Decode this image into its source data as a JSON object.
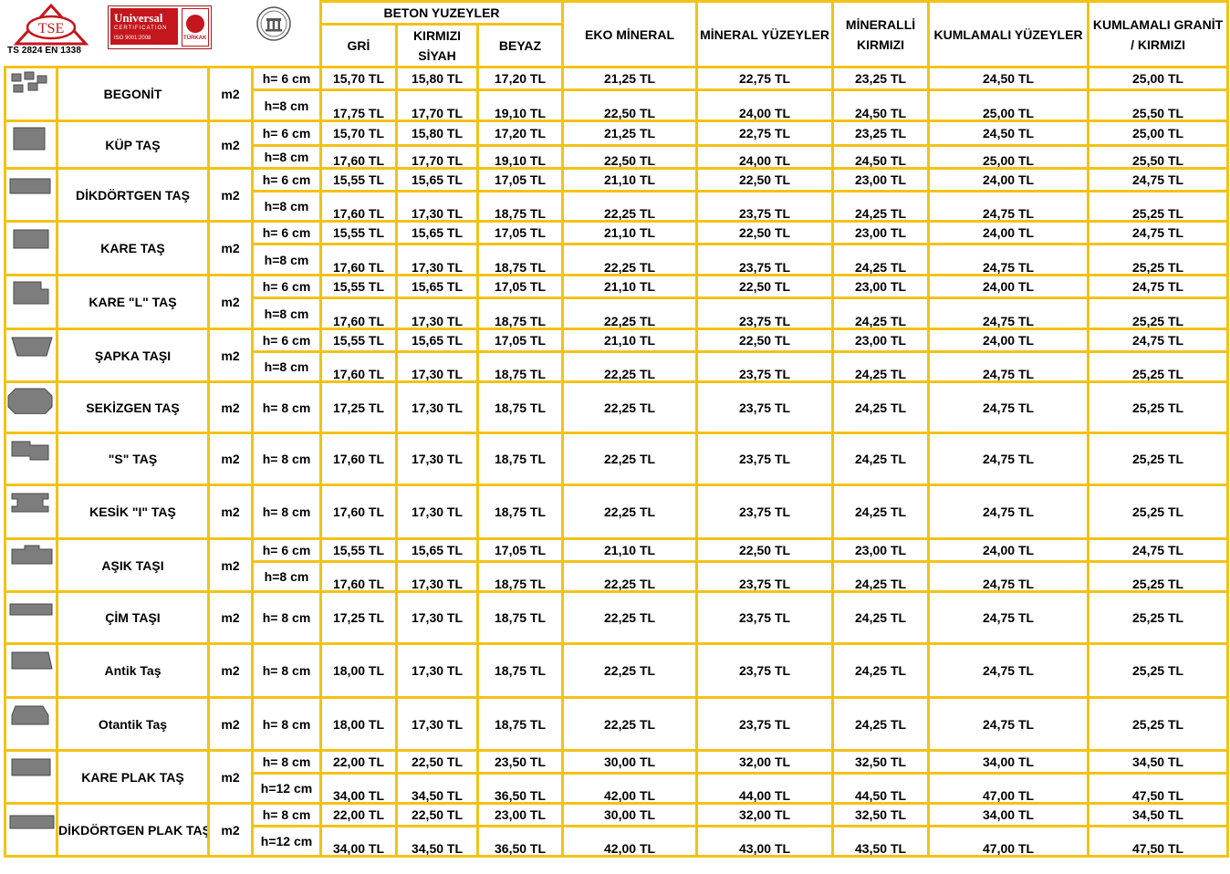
{
  "logos": {
    "tse_text": "TSE",
    "tse_standard": "TS 2824 EN 1338",
    "universal_name": "Universal",
    "universal_cert": "CERTIFICATION",
    "universal_iso": "ISO 9001:2008",
    "turkak": "TÜRKAK"
  },
  "header": {
    "group_label": "BETON YUZEYLER",
    "columns": [
      "GRİ",
      "KIRMIZI SİYAH",
      "BEYAZ",
      "EKO MİNERAL",
      "MİNERAL YÜZEYLER",
      "MİNERALLİ KIRMIZI",
      "KUMLAMALI YÜZEYLER",
      "KUMLAMALI GRANİT / KIRMIZI"
    ]
  },
  "products": [
    {
      "name": "BEGONİT",
      "unit": "m2",
      "icon": "begonit-stone-icon",
      "rows": [
        {
          "h": "h= 6 cm",
          "prices": [
            "15,70 TL",
            "15,80 TL",
            "17,20 TL",
            "21,25 TL",
            "22,75 TL",
            "23,25 TL",
            "24,50 TL",
            "25,00 TL"
          ]
        },
        {
          "h": "h=8 cm",
          "prices": [
            "17,75 TL",
            "17,70 TL",
            "19,10 TL",
            "22,50 TL",
            "24,00 TL",
            "24,50 TL",
            "25,00 TL",
            "25,50 TL"
          ]
        }
      ]
    },
    {
      "name": "KÜP TAŞ",
      "unit": "m2",
      "icon": "cube-stone-icon",
      "rows": [
        {
          "h": "h= 6 cm",
          "prices": [
            "15,70 TL",
            "15,80 TL",
            "17,20 TL",
            "21,25 TL",
            "22,75 TL",
            "23,25 TL",
            "24,50 TL",
            "25,00 TL"
          ]
        },
        {
          "h": "h=8 cm",
          "prices": [
            "17,60 TL",
            "17,70 TL",
            "19,10 TL",
            "22,50 TL",
            "24,00 TL",
            "24,50 TL",
            "25,00 TL",
            "25,50 TL"
          ]
        }
      ]
    },
    {
      "name": "DİKDÖRTGEN TAŞ",
      "unit": "m2",
      "icon": "rectangle-stone-icon",
      "rows": [
        {
          "h": "h= 6 cm",
          "prices": [
            "15,55 TL",
            "15,65 TL",
            "17,05 TL",
            "21,10 TL",
            "22,50 TL",
            "23,00 TL",
            "24,00 TL",
            "24,75 TL"
          ]
        },
        {
          "h": "h=8 cm",
          "prices": [
            "17,60 TL",
            "17,30 TL",
            "18,75 TL",
            "22,25 TL",
            "23,75 TL",
            "24,25 TL",
            "24,75 TL",
            "25,25 TL"
          ]
        }
      ]
    },
    {
      "name": "KARE TAŞ",
      "unit": "m2",
      "icon": "square-stone-icon",
      "rows": [
        {
          "h": "h= 6 cm",
          "prices": [
            "15,55 TL",
            "15,65 TL",
            "17,05 TL",
            "21,10 TL",
            "22,50 TL",
            "23,00 TL",
            "24,00 TL",
            "24,75 TL"
          ]
        },
        {
          "h": "h=8 cm",
          "prices": [
            "17,60 TL",
            "17,30 TL",
            "18,75 TL",
            "22,25 TL",
            "23,75 TL",
            "24,25 TL",
            "24,75 TL",
            "25,25 TL"
          ]
        }
      ]
    },
    {
      "name": "KARE \"L\" TAŞ",
      "unit": "m2",
      "icon": "square-l-stone-icon",
      "rows": [
        {
          "h": "h= 6 cm",
          "prices": [
            "15,55 TL",
            "15,65 TL",
            "17,05 TL",
            "21,10 TL",
            "22,50 TL",
            "23,00 TL",
            "24,00 TL",
            "24,75 TL"
          ]
        },
        {
          "h": "h=8 cm",
          "prices": [
            "17,60 TL",
            "17,30 TL",
            "18,75 TL",
            "22,25 TL",
            "23,75 TL",
            "24,25 TL",
            "24,75 TL",
            "25,25 TL"
          ]
        }
      ]
    },
    {
      "name": "ŞAPKA TAŞI",
      "unit": "m2",
      "icon": "hat-stone-icon",
      "rows": [
        {
          "h": "h= 6 cm",
          "prices": [
            "15,55 TL",
            "15,65 TL",
            "17,05 TL",
            "21,10 TL",
            "22,50 TL",
            "23,00 TL",
            "24,00 TL",
            "24,75 TL"
          ]
        },
        {
          "h": "h=8 cm",
          "prices": [
            "17,60 TL",
            "17,30 TL",
            "18,75 TL",
            "22,25 TL",
            "23,75 TL",
            "24,25 TL",
            "24,75 TL",
            "25,25 TL"
          ]
        }
      ]
    },
    {
      "name": "SEKİZGEN TAŞ",
      "unit": "m2",
      "icon": "octagon-stone-icon",
      "rows": [
        {
          "h": "h= 8 cm",
          "prices": [
            "17,25 TL",
            "17,30 TL",
            "18,75 TL",
            "22,25 TL",
            "23,75 TL",
            "24,25 TL",
            "24,75 TL",
            "25,25 TL"
          ]
        }
      ]
    },
    {
      "name": "\"S\" TAŞ",
      "unit": "m2",
      "icon": "s-stone-icon",
      "rows": [
        {
          "h": "h= 8 cm",
          "prices": [
            "17,60 TL",
            "17,30 TL",
            "18,75 TL",
            "22,25 TL",
            "23,75 TL",
            "24,25 TL",
            "24,75 TL",
            "25,25 TL"
          ]
        }
      ]
    },
    {
      "name": "KESİK \"I\" TAŞ",
      "unit": "m2",
      "icon": "i-stone-icon",
      "rows": [
        {
          "h": "h= 8 cm",
          "prices": [
            "17,60 TL",
            "17,30 TL",
            "18,75 TL",
            "22,25 TL",
            "23,75 TL",
            "24,25 TL",
            "24,75 TL",
            "25,25 TL"
          ]
        }
      ]
    },
    {
      "name": "AŞIK TAŞI",
      "unit": "m2",
      "icon": "asik-stone-icon",
      "rows": [
        {
          "h": "h= 6 cm",
          "prices": [
            "15,55 TL",
            "15,65 TL",
            "17,05 TL",
            "21,10 TL",
            "22,50 TL",
            "23,00 TL",
            "24,00 TL",
            "24,75 TL"
          ]
        },
        {
          "h": "h=8 cm",
          "prices": [
            "17,60 TL",
            "17,30 TL",
            "18,75 TL",
            "22,25 TL",
            "23,75 TL",
            "24,25 TL",
            "24,75 TL",
            "25,25 TL"
          ]
        }
      ]
    },
    {
      "name": "ÇİM TAŞI",
      "unit": "m2",
      "icon": "grass-stone-icon",
      "rows": [
        {
          "h": "h= 8 cm",
          "prices": [
            "17,25 TL",
            "17,30 TL",
            "18,75 TL",
            "22,25 TL",
            "23,75 TL",
            "24,25 TL",
            "24,75 TL",
            "25,25 TL"
          ]
        }
      ]
    },
    {
      "name": "Antik Taş",
      "unit": "m2",
      "icon": "antique-stone-icon",
      "rows": [
        {
          "h": "h= 8 cm",
          "prices": [
            "18,00 TL",
            "17,30 TL",
            "18,75 TL",
            "22,25 TL",
            "23,75 TL",
            "24,25 TL",
            "24,75 TL",
            "25,25 TL"
          ]
        }
      ]
    },
    {
      "name": "Otantik Taş",
      "unit": "m2",
      "icon": "authentic-stone-icon",
      "rows": [
        {
          "h": "h=  8 cm",
          "prices": [
            "18,00 TL",
            "17,30 TL",
            "18,75 TL",
            "22,25 TL",
            "23,75 TL",
            "24,25 TL",
            "24,75 TL",
            "25,25 TL"
          ]
        }
      ]
    },
    {
      "name": "KARE PLAK TAŞ",
      "unit": "m2",
      "icon": "square-plate-stone-icon",
      "rows": [
        {
          "h": "h= 8 cm",
          "prices": [
            "22,00 TL",
            "22,50 TL",
            "23,50 TL",
            "30,00 TL",
            "32,00 TL",
            "32,50 TL",
            "34,00 TL",
            "34,50 TL"
          ]
        },
        {
          "h": "h=12 cm",
          "prices": [
            "34,00 TL",
            "34,50 TL",
            "36,50 TL",
            "42,00 TL",
            "44,00 TL",
            "44,50 TL",
            "47,00 TL",
            "47,50 TL"
          ]
        }
      ]
    },
    {
      "name": "DİKDÖRTGEN PLAK TAŞ",
      "unit": "m2",
      "icon": "rectangle-plate-stone-icon",
      "rows": [
        {
          "h": "h= 8 cm",
          "prices": [
            "22,00 TL",
            "22,50 TL",
            "23,00 TL",
            "30,00 TL",
            "32,00 TL",
            "32,50 TL",
            "34,00 TL",
            "34,50 TL"
          ]
        },
        {
          "h": "h=12 cm",
          "prices": [
            "34,00 TL",
            "34,50 TL",
            "36,50 TL",
            "42,00 TL",
            "43,00 TL",
            "43,50 TL",
            "47,00 TL",
            "47,50 TL"
          ]
        }
      ]
    }
  ]
}
